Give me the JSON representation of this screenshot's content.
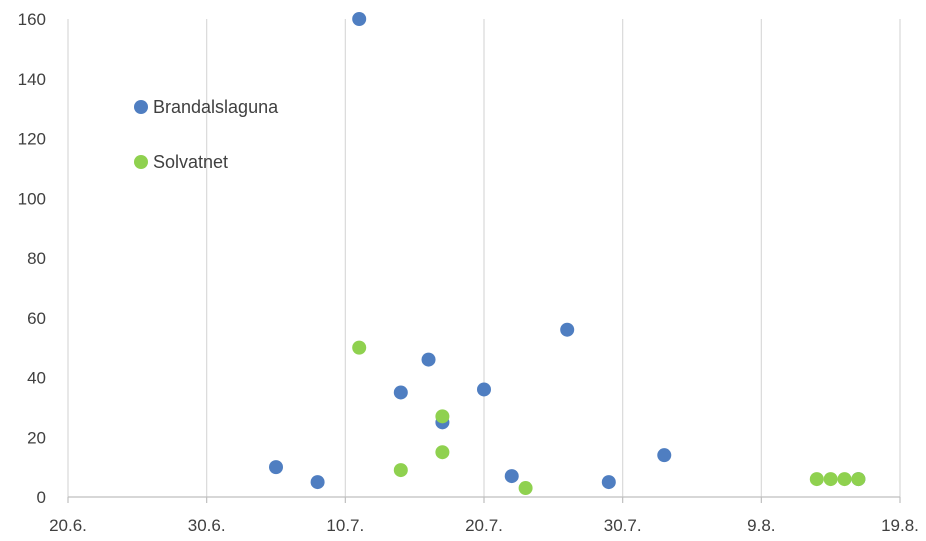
{
  "chart_data": {
    "type": "scatter",
    "title": "",
    "xlabel": "",
    "ylabel": "",
    "x_axis": {
      "type": "date",
      "range": [
        "2020-06-20",
        "2020-08-19"
      ],
      "ticks": [
        {
          "date": "2020-06-20",
          "label": "20.6."
        },
        {
          "date": "2020-06-30",
          "label": "30.6."
        },
        {
          "date": "2020-07-10",
          "label": "10.7."
        },
        {
          "date": "2020-07-20",
          "label": "20.7."
        },
        {
          "date": "2020-07-30",
          "label": "30.7."
        },
        {
          "date": "2020-08-09",
          "label": "9.8."
        },
        {
          "date": "2020-08-19",
          "label": "19.8."
        }
      ]
    },
    "y_axis": {
      "range": [
        0,
        160
      ],
      "ticks": [
        0,
        20,
        40,
        60,
        80,
        100,
        120,
        140,
        160
      ]
    },
    "grid": {
      "vertical": true,
      "horizontal": false
    },
    "legend_placement": "top-left",
    "series": [
      {
        "name": "Brandalslaguna",
        "color": "#4f7ec1",
        "points": [
          {
            "x": "2020-07-05",
            "y": 10
          },
          {
            "x": "2020-07-08",
            "y": 5
          },
          {
            "x": "2020-07-11",
            "y": 160
          },
          {
            "x": "2020-07-14",
            "y": 35
          },
          {
            "x": "2020-07-16",
            "y": 46
          },
          {
            "x": "2020-07-17",
            "y": 25
          },
          {
            "x": "2020-07-20",
            "y": 36
          },
          {
            "x": "2020-07-22",
            "y": 7
          },
          {
            "x": "2020-07-26",
            "y": 56
          },
          {
            "x": "2020-07-29",
            "y": 5
          },
          {
            "x": "2020-08-02",
            "y": 14
          },
          {
            "x": "2020-08-16",
            "y": 6
          }
        ]
      },
      {
        "name": "Solvatnet",
        "color": "#8fd14f",
        "points": [
          {
            "x": "2020-07-11",
            "y": 50
          },
          {
            "x": "2020-07-14",
            "y": 9
          },
          {
            "x": "2020-07-17",
            "y": 27
          },
          {
            "x": "2020-07-17",
            "y": 15
          },
          {
            "x": "2020-07-23",
            "y": 3
          },
          {
            "x": "2020-08-13",
            "y": 6
          },
          {
            "x": "2020-08-14",
            "y": 6
          },
          {
            "x": "2020-08-15",
            "y": 6
          },
          {
            "x": "2020-08-16",
            "y": 6
          }
        ]
      }
    ]
  }
}
